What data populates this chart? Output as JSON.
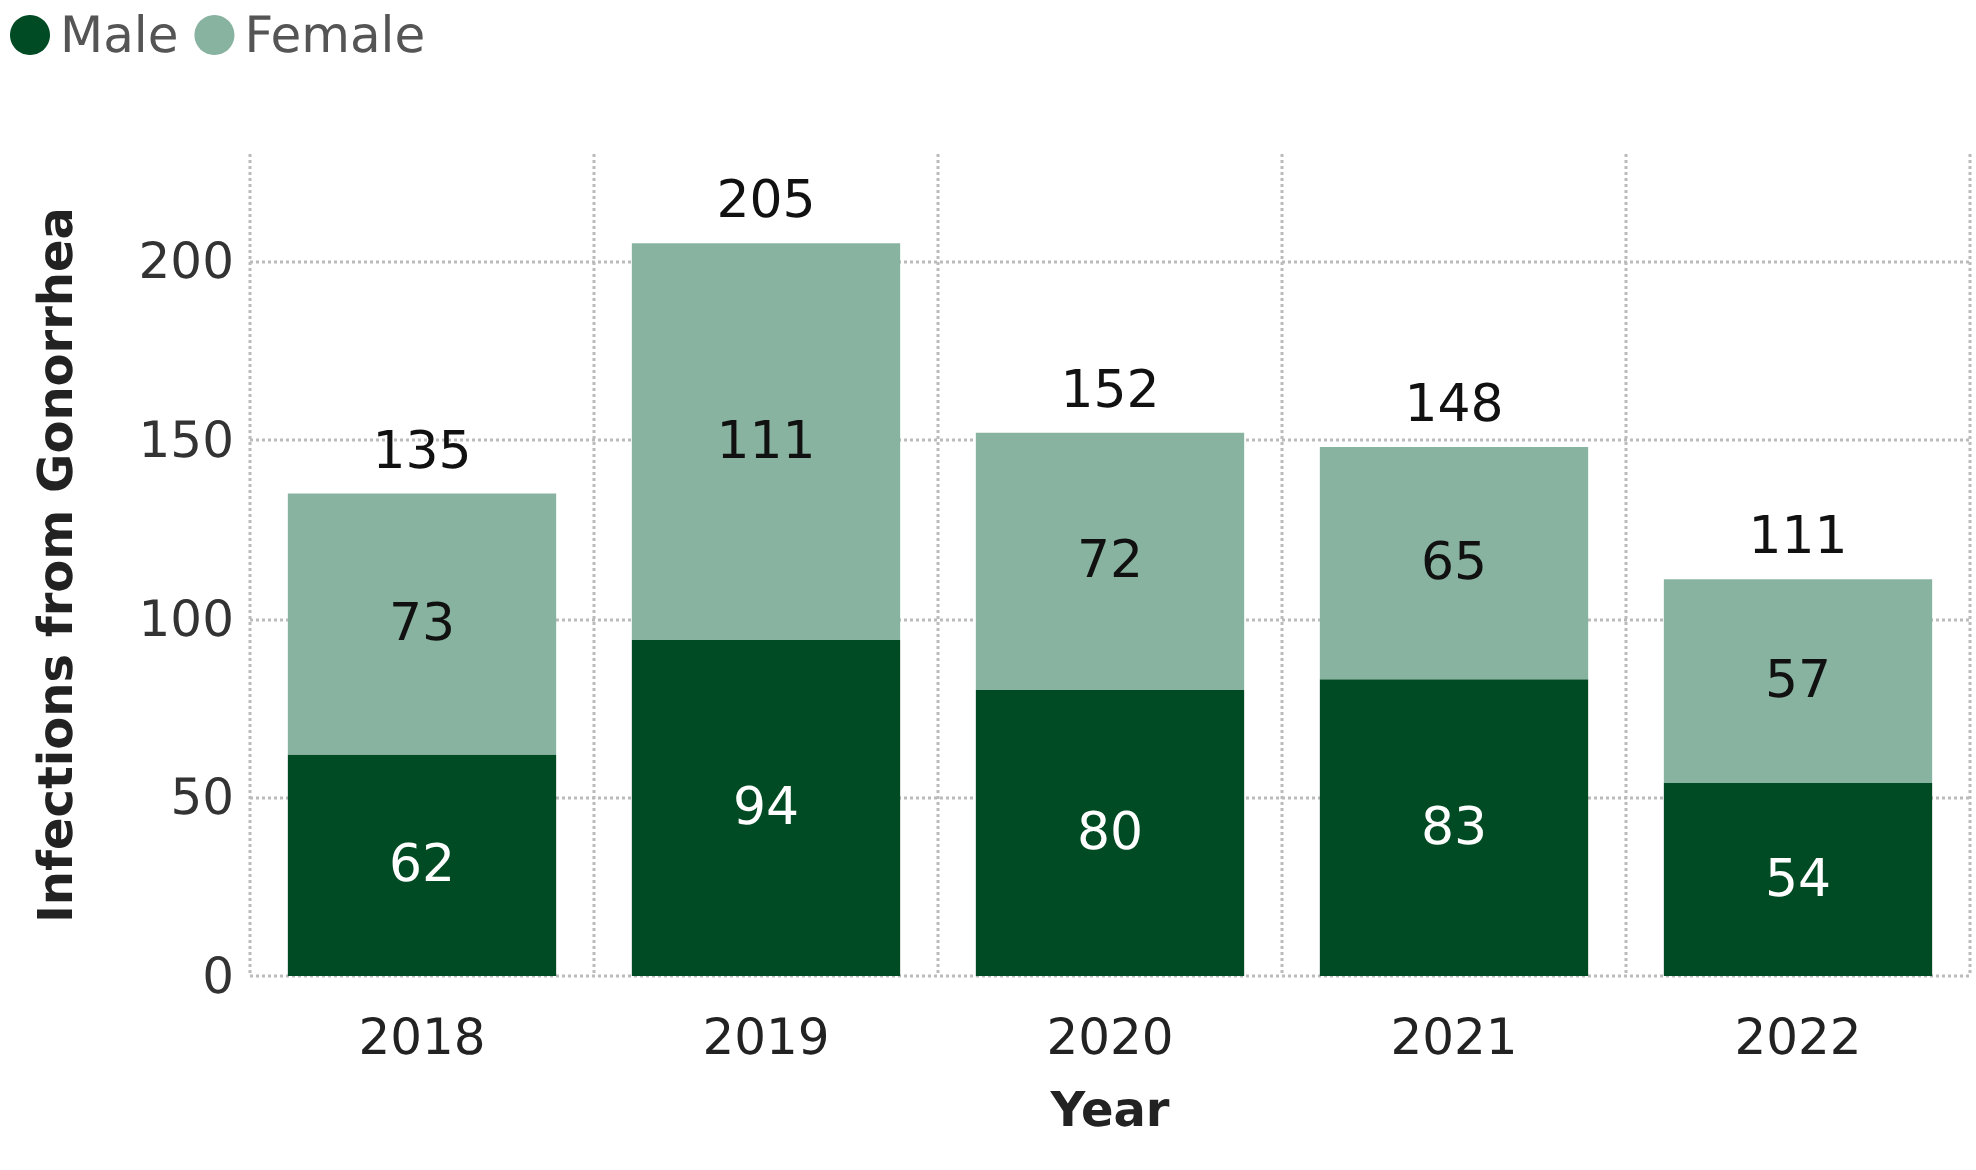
{
  "chart_data": {
    "type": "bar",
    "stacked": true,
    "xlabel": "Year",
    "ylabel": "Infections from Gonorrhea",
    "categories": [
      "2018",
      "2019",
      "2020",
      "2021",
      "2022"
    ],
    "series": [
      {
        "name": "Male",
        "color": "#004b23",
        "values": [
          62,
          94,
          80,
          83,
          54
        ]
      },
      {
        "name": "Female",
        "color": "#88b3a0",
        "values": [
          73,
          111,
          72,
          65,
          57
        ]
      }
    ],
    "totals": [
      "135",
      "205",
      "152",
      "148",
      "111"
    ],
    "data_labels": true,
    "ylim": [
      0,
      230
    ],
    "yticks": [
      0,
      50,
      100,
      150,
      200
    ],
    "grid": true,
    "legend": "top left"
  }
}
